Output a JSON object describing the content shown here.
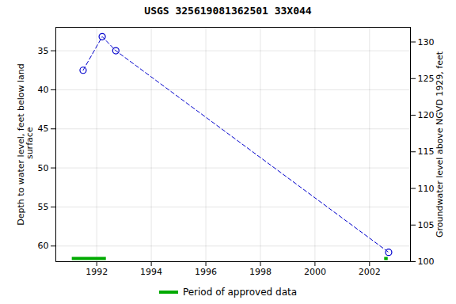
{
  "chart_data": {
    "type": "line",
    "title": "USGS 325619081362501 33X044",
    "x": [
      1991.5,
      1992.2,
      1992.7,
      2002.7
    ],
    "series": [
      {
        "color": "#0000cc",
        "values": [
          37.5,
          33.2,
          35.0,
          60.8
        ],
        "marker": "open_circle",
        "line_style": "dashed"
      }
    ],
    "approved_periods": {
      "name": "Period of approved data",
      "color": "#00aa00",
      "y": 61.6,
      "ranges": [
        [
          1991.1,
          1992.35
        ],
        [
          2002.55,
          2002.68
        ]
      ]
    },
    "xlim": [
      1990.5,
      2003.5
    ],
    "xticks": [
      1992,
      1994,
      1996,
      1998,
      2000,
      2002
    ],
    "ylim": [
      62,
      32
    ],
    "yticks": [
      35,
      40,
      45,
      50,
      55,
      60
    ],
    "ylabel": "Depth to water level, feet below land\n surface",
    "y2lim": [
      100,
      132
    ],
    "y2ticks": [
      100,
      105,
      110,
      115,
      120,
      125,
      130
    ],
    "y2label": "Groundwater level above NGVD 1929, feet",
    "grid": true,
    "legend": "bottom"
  }
}
